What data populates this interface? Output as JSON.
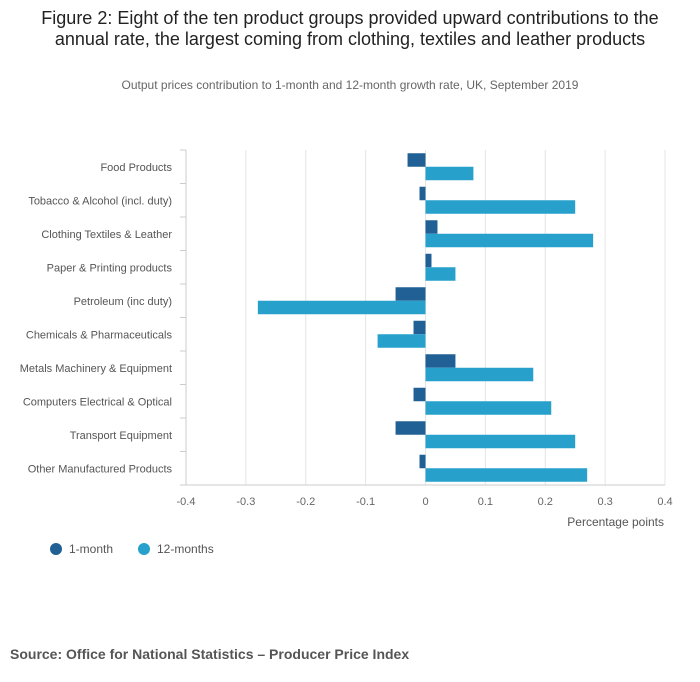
{
  "title": "Figure 2: Eight of the ten product groups provided upward contributions to the annual rate, the largest coming from clothing, textiles and leather products",
  "subtitle": "Output prices contribution to 1-month and 12-month growth rate, UK, September 2019",
  "source": "Source: Office for National Statistics – Producer Price Index",
  "chart_data": {
    "type": "bar",
    "orientation": "horizontal",
    "categories": [
      "Food Products",
      "Tobacco & Alcohol (incl. duty)",
      "Clothing Textiles & Leather",
      "Paper & Printing products",
      "Petroleum (inc duty)",
      "Chemicals & Pharmaceuticals",
      "Metals Machinery & Equipment",
      "Computers Electrical & Optical",
      "Transport Equipment",
      "Other Manufactured Products"
    ],
    "series": [
      {
        "name": "1-month",
        "color": "#206095",
        "values": [
          -0.03,
          -0.01,
          0.02,
          0.01,
          -0.05,
          -0.02,
          0.05,
          -0.02,
          -0.05,
          -0.01
        ]
      },
      {
        "name": "12-months",
        "color": "#27a0cc",
        "values": [
          0.08,
          0.25,
          0.28,
          0.05,
          -0.28,
          -0.08,
          0.18,
          0.21,
          0.25,
          0.27
        ]
      }
    ],
    "xlim": [
      -0.4,
      0.4
    ],
    "xticks": [
      "-0.4",
      "-0.3",
      "-0.2",
      "-0.1",
      "0",
      "0.1",
      "0.2",
      "0.3",
      "0.4"
    ],
    "xlabel": "Percentage points",
    "legend_position": "bottom-left",
    "grid": true
  }
}
